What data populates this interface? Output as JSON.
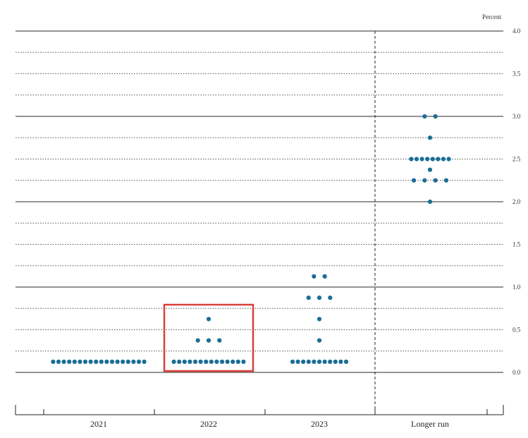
{
  "chart_data": {
    "type": "scatter",
    "unit_label": "Percent",
    "ylim": [
      0,
      4
    ],
    "y_ticks": [
      "0.0",
      "0.5",
      "1.0",
      "1.5",
      "2.0",
      "2.5",
      "3.0",
      "3.5",
      "4.0"
    ],
    "categories": [
      "2021",
      "2022",
      "2023",
      "Longer run"
    ],
    "dot_color": "#1a6e96",
    "highlight_color": "#d9403a",
    "highlight_category": "2022",
    "dots": [
      {
        "category": "2021",
        "y": 0.125,
        "count": 18
      },
      {
        "category": "2022",
        "y": 0.125,
        "count": 14
      },
      {
        "category": "2022",
        "y": 0.375,
        "count": 3
      },
      {
        "category": "2022",
        "y": 0.625,
        "count": 1
      },
      {
        "category": "2023",
        "y": 0.125,
        "count": 11
      },
      {
        "category": "2023",
        "y": 0.375,
        "count": 1
      },
      {
        "category": "2023",
        "y": 0.625,
        "count": 1
      },
      {
        "category": "2023",
        "y": 0.875,
        "count": 3
      },
      {
        "category": "2023",
        "y": 1.125,
        "count": 2
      },
      {
        "category": "Longer run",
        "y": 2.0,
        "count": 1
      },
      {
        "category": "Longer run",
        "y": 2.25,
        "count": 4
      },
      {
        "category": "Longer run",
        "y": 2.375,
        "count": 1
      },
      {
        "category": "Longer run",
        "y": 2.5,
        "count": 8
      },
      {
        "category": "Longer run",
        "y": 2.75,
        "count": 1
      },
      {
        "category": "Longer run",
        "y": 3.0,
        "count": 2
      }
    ]
  }
}
